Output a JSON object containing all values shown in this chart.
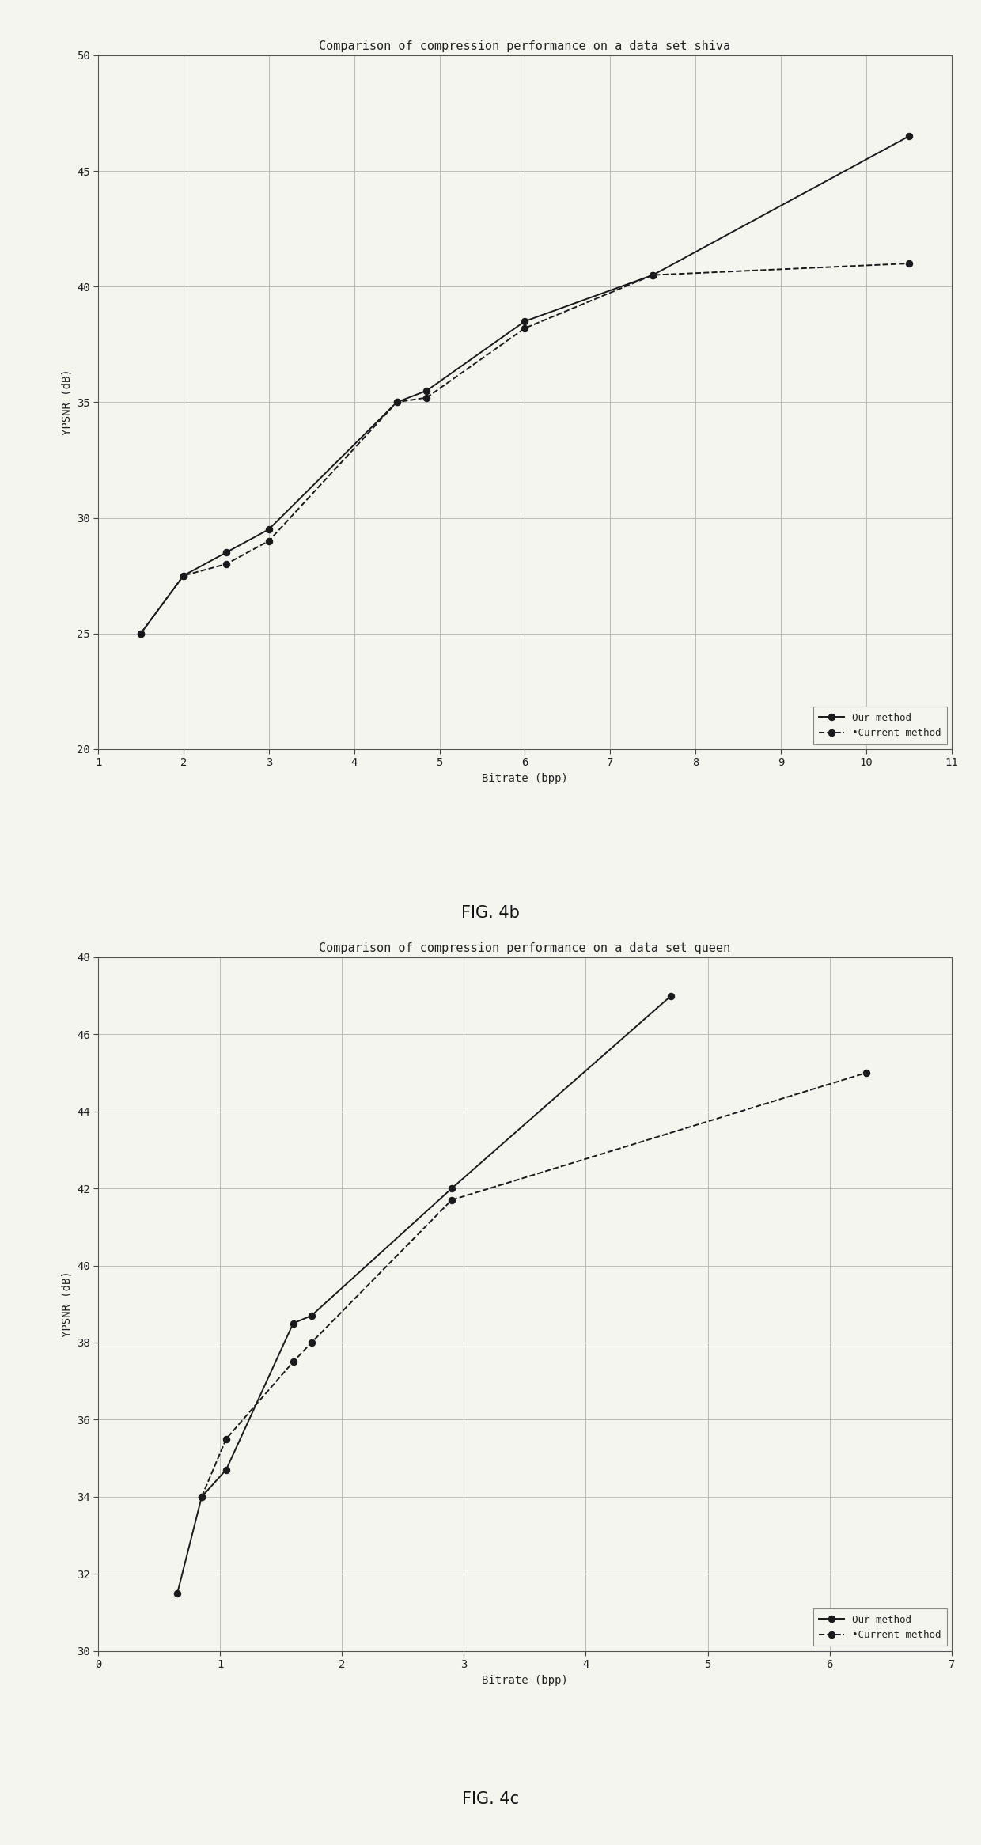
{
  "fig4b": {
    "title": "Comparison of compression performance on a data set shiva",
    "xlabel": "Bitrate (bpp)",
    "ylabel": "YPSNR (dB)",
    "xlim": [
      1,
      11
    ],
    "ylim": [
      20,
      50
    ],
    "xticks": [
      1,
      2,
      3,
      4,
      5,
      6,
      7,
      8,
      9,
      10,
      11
    ],
    "yticks": [
      20,
      25,
      30,
      35,
      40,
      45,
      50
    ],
    "our_method_x": [
      1.5,
      2.0,
      2.5,
      3.0,
      4.5,
      4.85,
      6.0,
      7.5,
      10.5
    ],
    "our_method_y": [
      25.0,
      27.5,
      28.5,
      29.5,
      35.0,
      35.5,
      38.5,
      40.5,
      46.5
    ],
    "current_method_x": [
      1.5,
      2.0,
      2.5,
      3.0,
      4.5,
      4.85,
      6.0,
      7.5,
      10.5
    ],
    "current_method_y": [
      25.0,
      27.5,
      28.0,
      29.0,
      35.0,
      35.2,
      38.2,
      40.5,
      41.0
    ],
    "figname": "FIG. 4b"
  },
  "fig4c": {
    "title": "Comparison of compression performance on a data set queen",
    "xlabel": "Bitrate (bpp)",
    "ylabel": "YPSNR (dB)",
    "xlim": [
      0,
      7
    ],
    "ylim": [
      30,
      48
    ],
    "xticks": [
      0,
      1,
      2,
      3,
      4,
      5,
      6,
      7
    ],
    "yticks": [
      30,
      32,
      34,
      36,
      38,
      40,
      42,
      44,
      46,
      48
    ],
    "our_method_x": [
      0.65,
      0.85,
      1.05,
      1.6,
      1.75,
      2.9,
      4.7
    ],
    "our_method_y": [
      31.5,
      34.0,
      34.7,
      38.5,
      38.7,
      42.0,
      47.0
    ],
    "current_method_x": [
      0.85,
      1.05,
      1.6,
      1.75,
      2.9,
      6.3
    ],
    "current_method_y": [
      34.0,
      35.5,
      37.5,
      38.0,
      41.7,
      45.0
    ],
    "figname": "FIG. 4c"
  },
  "line_color": "#1a1a1a",
  "marker_color": "#1a1a1a",
  "marker_style": "o",
  "marker_size": 6,
  "solid_linewidth": 1.4,
  "dashed_linewidth": 1.4,
  "legend_our": "Our method",
  "legend_current": "Current method",
  "grid_color": "#bbbbbb",
  "background_color": "#f5f5f0",
  "font_family": "monospace",
  "title_fontsize": 11,
  "label_fontsize": 10,
  "tick_fontsize": 10,
  "legend_fontsize": 9
}
